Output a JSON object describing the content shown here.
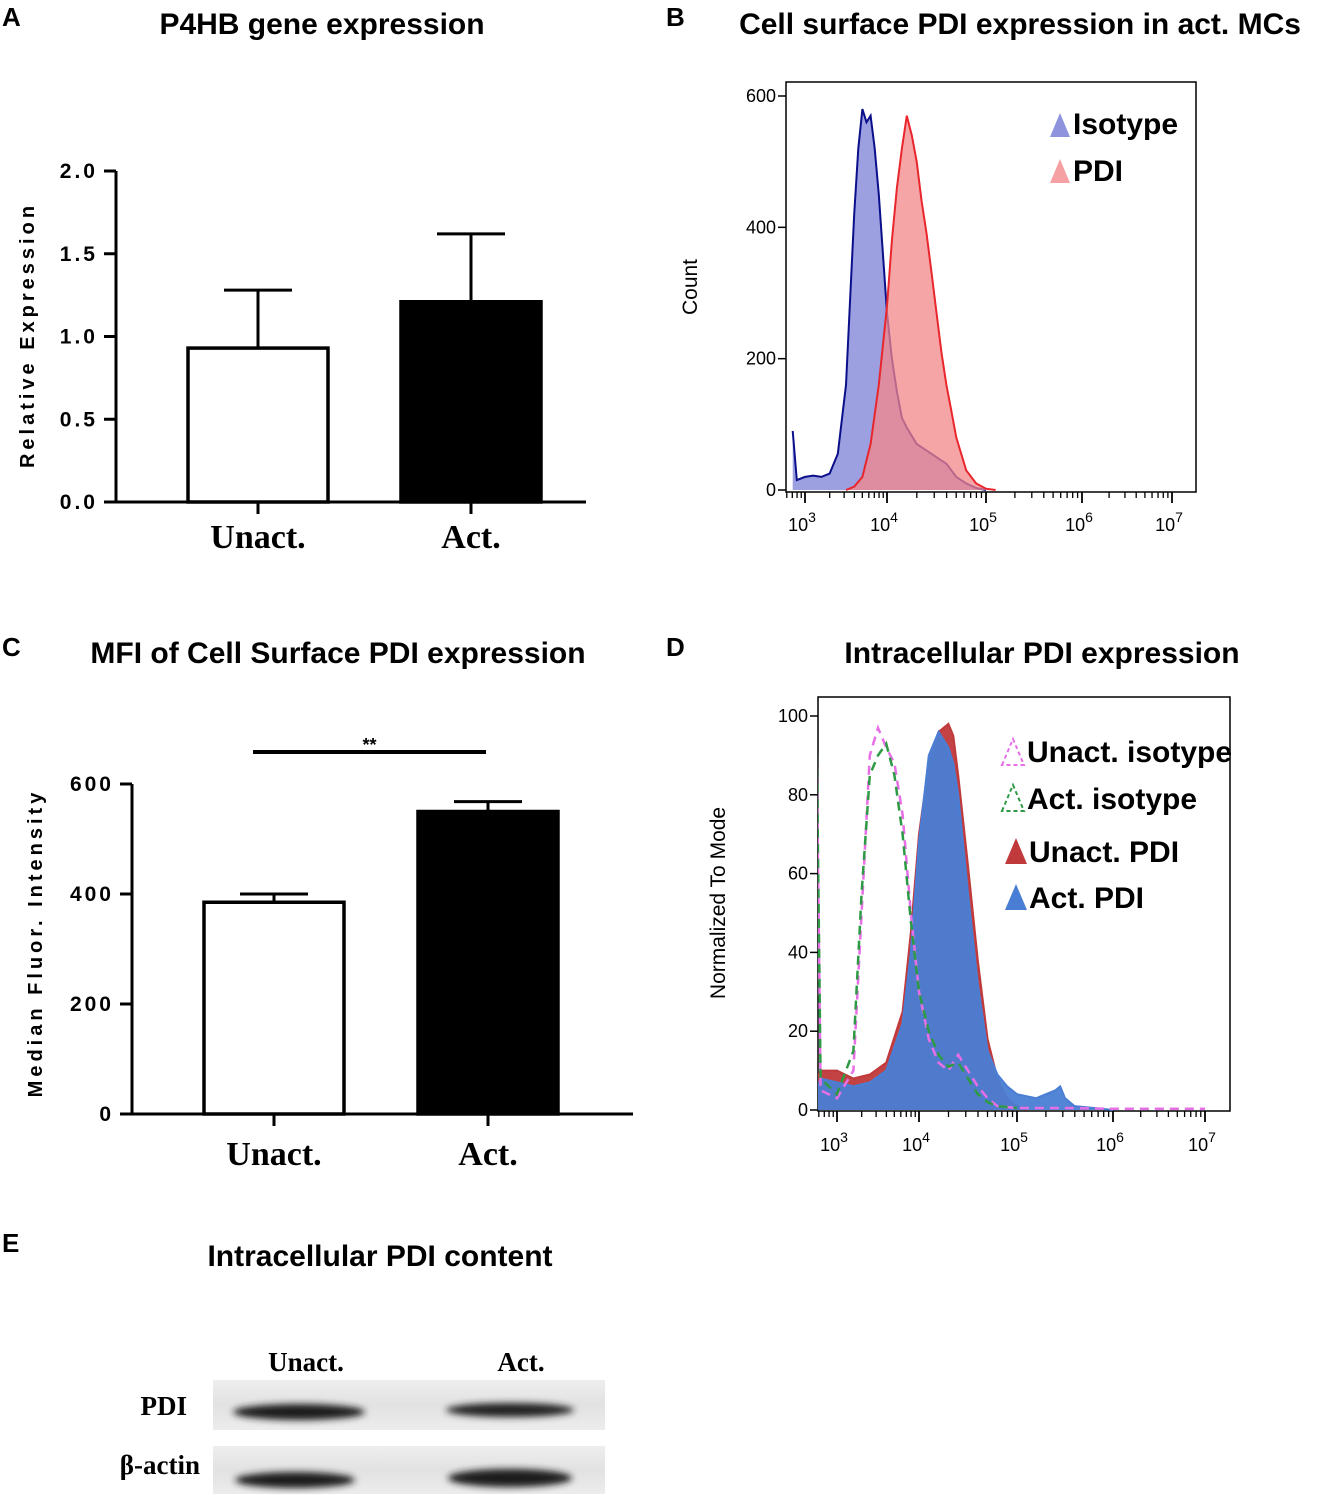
{
  "chart_data": [
    {
      "panel": "A",
      "type": "bar",
      "title": "P4HB gene expression",
      "xlabel": "",
      "ylabel": "Relative Expression",
      "ylim": [
        0,
        2.0
      ],
      "yticks": [
        "0.0",
        "0.5",
        "1.0",
        "1.5",
        "2.0"
      ],
      "categories": [
        "Unact.",
        "Act."
      ],
      "values": [
        0.93,
        1.21
      ],
      "errors": [
        0.35,
        0.41
      ],
      "colors": [
        "#ffffff",
        "#000000"
      ]
    },
    {
      "panel": "B",
      "type": "area",
      "title": "Cell surface PDI expression in act. MCs",
      "xlabel": "",
      "ylabel": "Count",
      "ylim": [
        0,
        600
      ],
      "yticks": [
        "0",
        "200",
        "400",
        "600"
      ],
      "xscale": "log",
      "xticks": [
        "10^3",
        "10^4",
        "10^5",
        "10^6",
        "10^7"
      ],
      "legend": [
        "Isotype",
        "PDI"
      ],
      "series": [
        {
          "name": "Isotype",
          "color": "#7b7fd6",
          "line": "#0b0f8a",
          "x": [
            2.85,
            2.9,
            3.0,
            3.1,
            3.2,
            3.3,
            3.4,
            3.5,
            3.6,
            3.65,
            3.7,
            3.75,
            3.8,
            3.85,
            3.9,
            3.95,
            4.0,
            4.05,
            4.1,
            4.15,
            4.2,
            4.3,
            4.4,
            4.5,
            4.6,
            4.7,
            4.8,
            4.9,
            5.0
          ],
          "y": [
            90,
            15,
            20,
            22,
            20,
            25,
            55,
            160,
            420,
            520,
            580,
            560,
            570,
            520,
            450,
            360,
            270,
            200,
            150,
            110,
            95,
            70,
            60,
            50,
            40,
            20,
            10,
            3,
            0
          ]
        },
        {
          "name": "PDI",
          "color": "#f3878a",
          "line": "#e8262c",
          "x": [
            3.5,
            3.6,
            3.7,
            3.8,
            3.9,
            4.0,
            4.05,
            4.1,
            4.15,
            4.2,
            4.25,
            4.3,
            4.35,
            4.4,
            4.45,
            4.5,
            4.55,
            4.6,
            4.65,
            4.7,
            4.8,
            4.9,
            5.0,
            5.1
          ],
          "y": [
            0,
            5,
            20,
            70,
            160,
            280,
            380,
            460,
            520,
            570,
            540,
            500,
            440,
            390,
            330,
            270,
            210,
            160,
            120,
            80,
            30,
            10,
            2,
            0
          ]
        }
      ]
    },
    {
      "panel": "C",
      "type": "bar",
      "title": "MFI of Cell Surface PDI expression",
      "xlabel": "",
      "ylabel": "Median Fluor. Intensity",
      "ylim": [
        0,
        600
      ],
      "yticks": [
        "0",
        "200",
        "400",
        "600"
      ],
      "categories": [
        "Unact.",
        "Act."
      ],
      "values": [
        385,
        550
      ],
      "errors": [
        15,
        18
      ],
      "colors": [
        "#ffffff",
        "#000000"
      ],
      "annotation": "**"
    },
    {
      "panel": "D",
      "type": "area",
      "title": "Intracellular PDI expression",
      "xlabel": "",
      "ylabel": "Normalized To Mode",
      "ylim": [
        0,
        100
      ],
      "yticks": [
        "0",
        "20",
        "40",
        "60",
        "80",
        "100"
      ],
      "xscale": "log",
      "xticks": [
        "10^3",
        "10^4",
        "10^5",
        "10^6",
        "10^7"
      ],
      "legend": [
        "Unact. isotype",
        "Act. isotype",
        "Unact. PDI",
        "Act. PDI"
      ],
      "series": [
        {
          "name": "Unact. PDI",
          "color": "#c0393b",
          "style": "filled",
          "x": [
            2.75,
            2.8,
            3.0,
            3.2,
            3.4,
            3.6,
            3.8,
            3.9,
            4.0,
            4.1,
            4.2,
            4.3,
            4.35,
            4.4,
            4.5,
            4.6,
            4.7,
            4.8,
            4.9,
            5.0,
            5.1
          ],
          "y": [
            8,
            10,
            10,
            8,
            9,
            12,
            25,
            45,
            70,
            88,
            96,
            98,
            95,
            85,
            62,
            38,
            18,
            8,
            3,
            1,
            0
          ]
        },
        {
          "name": "Act. PDI",
          "color": "#4a7ed4",
          "style": "filled",
          "x": [
            2.75,
            2.8,
            3.0,
            3.2,
            3.4,
            3.6,
            3.8,
            3.9,
            4.0,
            4.1,
            4.2,
            4.3,
            4.35,
            4.4,
            4.5,
            4.6,
            4.7,
            4.8,
            4.9,
            5.0,
            5.2,
            5.4,
            5.45,
            5.5,
            5.6,
            5.8,
            6.0
          ],
          "y": [
            5,
            8,
            7,
            6,
            7,
            10,
            22,
            40,
            68,
            90,
            96,
            92,
            88,
            80,
            55,
            32,
            15,
            9,
            6,
            4,
            3,
            5,
            6,
            3,
            1,
            0.5,
            0
          ]
        },
        {
          "name": "Unact. isotype",
          "color": "#e76fe6",
          "style": "dashed",
          "x": [
            2.75,
            2.8,
            3.0,
            3.2,
            3.3,
            3.4,
            3.5,
            3.6,
            3.7,
            3.8,
            3.9,
            4.0,
            4.1,
            4.2,
            4.3,
            4.4,
            4.5,
            4.6,
            4.7,
            4.8,
            5.0,
            5.5,
            6.0,
            7.0
          ],
          "y": [
            96,
            5,
            3,
            10,
            50,
            90,
            97,
            92,
            88,
            75,
            50,
            30,
            18,
            12,
            10,
            14,
            10,
            6,
            3,
            1,
            0.5,
            0.5,
            0.3,
            0.3
          ]
        },
        {
          "name": "Act. isotype",
          "color": "#2e9a45",
          "style": "dashed",
          "x": [
            2.75,
            2.8,
            3.0,
            3.2,
            3.3,
            3.4,
            3.5,
            3.6,
            3.7,
            3.8,
            3.9,
            4.0,
            4.1,
            4.2,
            4.3,
            4.4,
            4.5,
            4.6,
            4.7,
            4.8,
            5.0
          ],
          "y": [
            98,
            8,
            4,
            15,
            55,
            85,
            90,
            93,
            85,
            70,
            48,
            30,
            20,
            14,
            11,
            12,
            8,
            4,
            2,
            1,
            0.5
          ]
        }
      ]
    }
  ],
  "panel_labels": {
    "a": "A",
    "b": "B",
    "c": "C",
    "d": "D",
    "e": "E"
  },
  "blot": {
    "title": "Intracellular PDI content",
    "lanes": [
      "Unact.",
      "Act."
    ],
    "rows": [
      "PDI",
      "β-actin"
    ]
  }
}
